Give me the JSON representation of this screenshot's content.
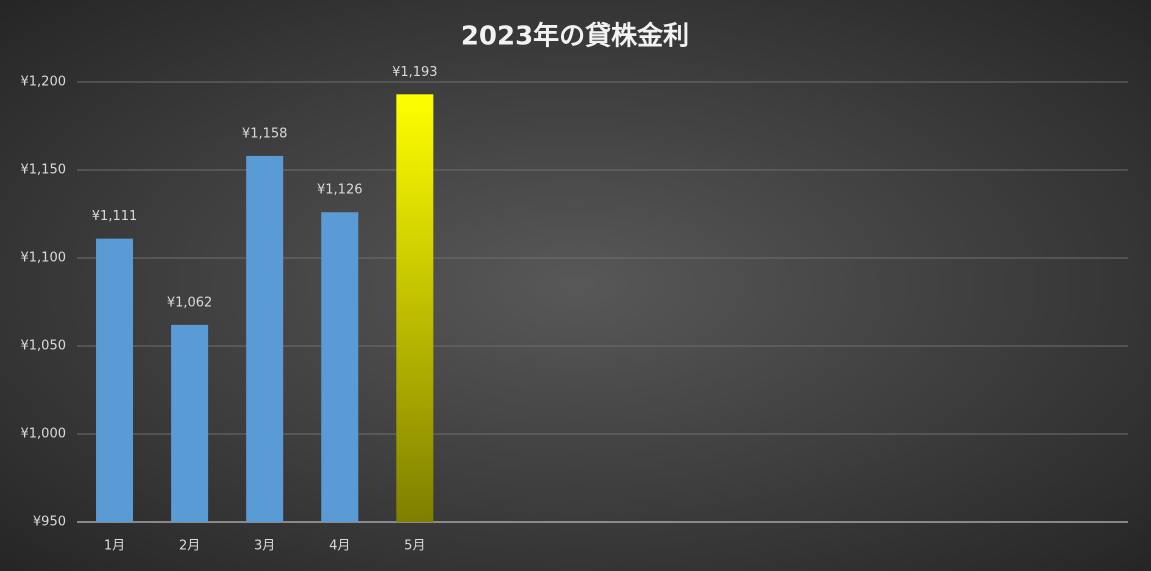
{
  "chart_data": {
    "type": "bar",
    "title": "2023年の貸株金利",
    "categories": [
      "1月",
      "2月",
      "3月",
      "4月",
      "5月",
      null,
      null,
      null,
      null,
      null,
      null,
      null,
      null,
      null
    ],
    "values": [
      1111,
      1062,
      1158,
      1126,
      1193,
      null,
      null,
      null,
      null,
      null,
      null,
      null,
      null,
      null
    ],
    "value_labels": [
      "¥1,111",
      "¥1,062",
      "¥1,158",
      "¥1,126",
      "¥1,193",
      null,
      null,
      null,
      null,
      null,
      null,
      null,
      null,
      null
    ],
    "colors": [
      "#5b9bd5",
      "#5b9bd5",
      "#5b9bd5",
      "#5b9bd5",
      "#ffff00",
      null,
      null,
      null,
      null,
      null,
      null,
      null,
      null,
      null
    ],
    "gradient_end": "#7f7f00",
    "ylim": [
      950,
      1200
    ],
    "yticks": [
      {
        "value": 950,
        "label": "¥950"
      },
      {
        "value": 1000,
        "label": "¥1,000"
      },
      {
        "value": 1050,
        "label": "¥1,050"
      },
      {
        "value": 1100,
        "label": "¥1,100"
      },
      {
        "value": 1150,
        "label": "¥1,150"
      },
      {
        "value": 1200,
        "label": "¥1,200"
      }
    ],
    "grid": true
  }
}
